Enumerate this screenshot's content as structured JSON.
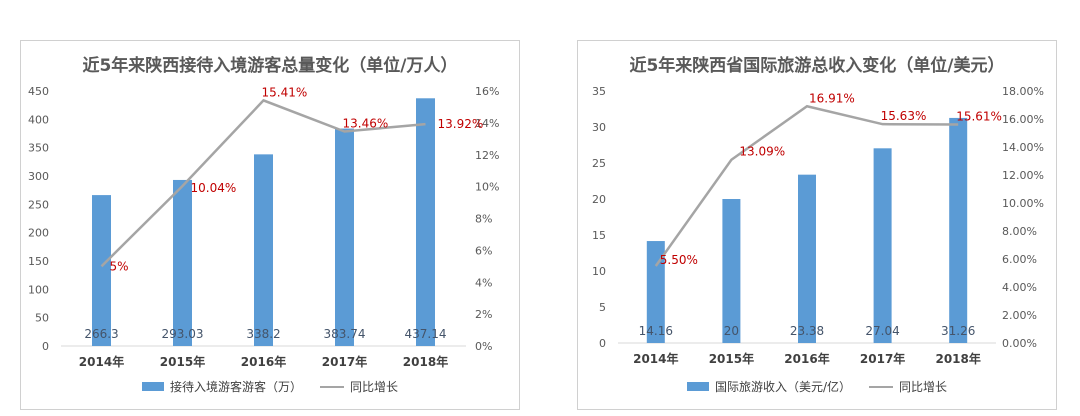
{
  "colors": {
    "bar": "#5b9bd5",
    "line": "#a5a5a5",
    "growth_label": "#c00000",
    "value_label": "#44546a"
  },
  "chart_data": [
    {
      "type": "bar",
      "title": "近5年来陕西接待入境游客总量变化（单位/万人）",
      "categories": [
        "2014年",
        "2015年",
        "2016年",
        "2017年",
        "2018年"
      ],
      "series": [
        {
          "name": "接待入境游客游客（万）",
          "kind": "bar",
          "axis": "left",
          "values": [
            266.3,
            293.03,
            338.2,
            383.74,
            437.14
          ],
          "labels": [
            "266.3",
            "293.03",
            "338.2",
            "383.74",
            "437.14"
          ]
        },
        {
          "name": "同比增长",
          "kind": "line",
          "axis": "right",
          "values": [
            5,
            10.04,
            15.41,
            13.46,
            13.92
          ],
          "labels": [
            "5%",
            "10.04%",
            "15.41%",
            "13.46%",
            "13.92%"
          ]
        }
      ],
      "ylim": [
        0,
        450
      ],
      "yticks": [
        0,
        50,
        100,
        150,
        200,
        250,
        300,
        350,
        400,
        450
      ],
      "ytick_labels": [
        "0",
        "50",
        "100",
        "150",
        "200",
        "250",
        "300",
        "350",
        "400",
        "450"
      ],
      "y2lim": [
        0,
        16
      ],
      "y2ticks": [
        0,
        2,
        4,
        6,
        8,
        10,
        12,
        14,
        16
      ],
      "y2tick_labels": [
        "0%",
        "2%",
        "4%",
        "6%",
        "8%",
        "10%",
        "12%",
        "14%",
        "16%"
      ],
      "legend": "bottom",
      "grid": false
    },
    {
      "type": "bar",
      "title": "近5年来陕西省国际旅游总收入变化（单位/美元）",
      "categories": [
        "2014年",
        "2015年",
        "2016年",
        "2017年",
        "2018年"
      ],
      "series": [
        {
          "name": "国际旅游收入（美元/亿）",
          "kind": "bar",
          "axis": "left",
          "values": [
            14.16,
            20,
            23.38,
            27.04,
            31.26
          ],
          "labels": [
            "14.16",
            "20",
            "23.38",
            "27.04",
            "31.26"
          ]
        },
        {
          "name": "同比增长",
          "kind": "line",
          "axis": "right",
          "values": [
            5.5,
            13.09,
            16.91,
            15.63,
            15.61
          ],
          "labels": [
            "5.50%",
            "13.09%",
            "16.91%",
            "15.63%",
            "15.61%"
          ]
        }
      ],
      "ylim": [
        0,
        35
      ],
      "yticks": [
        0,
        5,
        10,
        15,
        20,
        25,
        30,
        35
      ],
      "ytick_labels": [
        "0",
        "5",
        "10",
        "15",
        "20",
        "25",
        "30",
        "35"
      ],
      "y2lim": [
        0,
        18
      ],
      "y2ticks": [
        0,
        2,
        4,
        6,
        8,
        10,
        12,
        14,
        16,
        18
      ],
      "y2tick_labels": [
        "0.00%",
        "2.00%",
        "4.00%",
        "6.00%",
        "8.00%",
        "10.00%",
        "12.00%",
        "14.00%",
        "16.00%",
        "18.00%"
      ],
      "legend": "bottom",
      "grid": false
    }
  ]
}
